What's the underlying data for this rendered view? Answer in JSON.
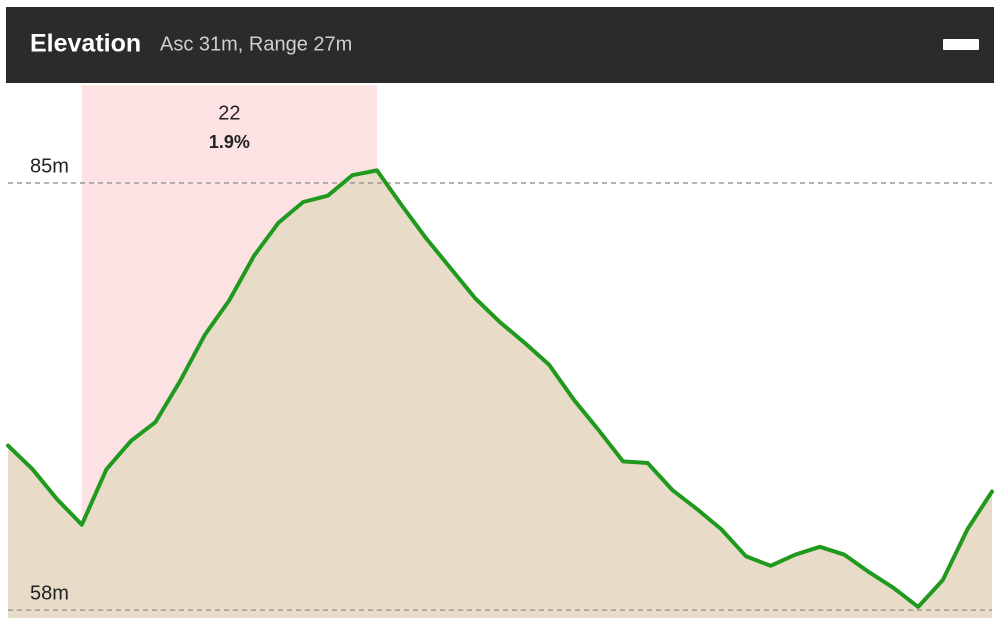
{
  "chart_data": {
    "type": "area",
    "title": "Elevation",
    "subtitle": "Asc 31m, Range 27m",
    "values": [
      68.4,
      66.9,
      65.0,
      63.4,
      66.9,
      68.7,
      69.9,
      72.5,
      75.4,
      77.6,
      80.4,
      82.5,
      83.8,
      84.2,
      85.5,
      85.8,
      83.6,
      81.5,
      79.6,
      77.7,
      76.2,
      74.9,
      73.5,
      71.3,
      69.4,
      67.4,
      67.3,
      65.6,
      64.4,
      63.1,
      61.4,
      60.8,
      61.5,
      62.0,
      61.5,
      60.4,
      59.4,
      58.2,
      59.9,
      63.1,
      65.5
    ],
    "ylim": [
      57.5,
      91.2
    ],
    "yticks": [
      {
        "value": 58,
        "label": "58m"
      },
      {
        "value": 85,
        "label": "85m"
      }
    ],
    "line_color": "#1f9a1f",
    "fill_color": "#e8dcc8",
    "highlight": {
      "distance": 22,
      "grade": {
        "value": 1.9,
        "label": "1.9%"
      },
      "color": "#fde2e4"
    }
  }
}
